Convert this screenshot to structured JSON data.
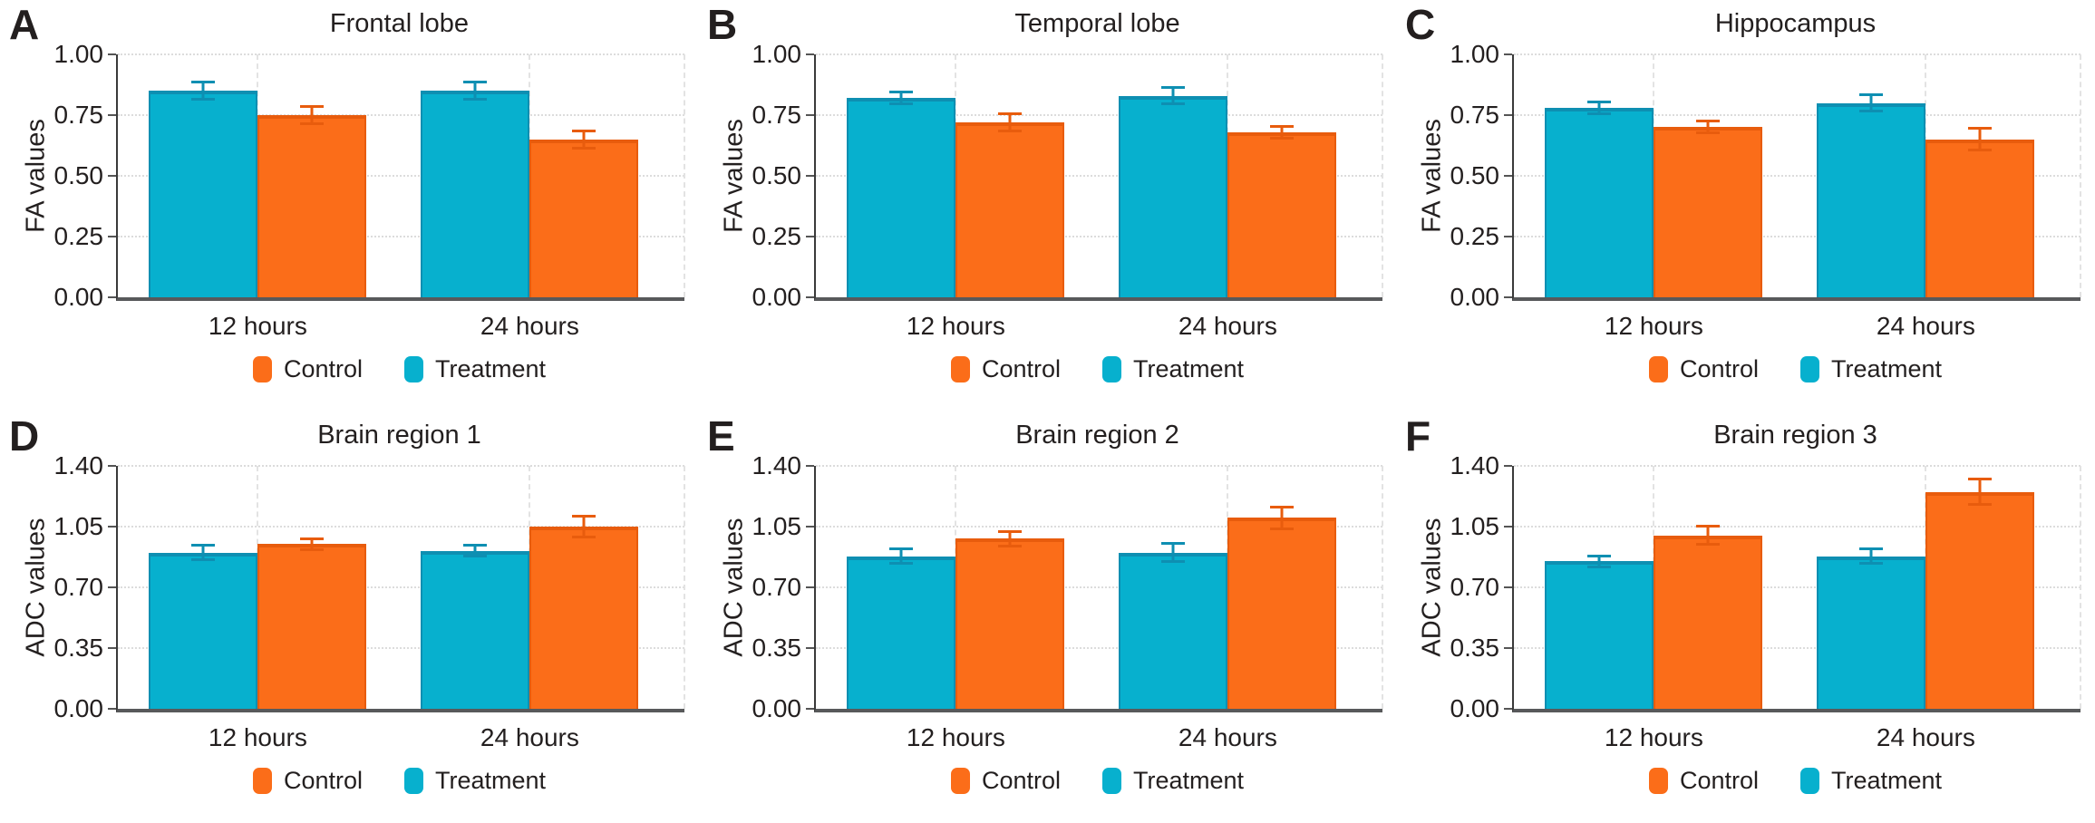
{
  "figure": {
    "background": "#ffffff",
    "text_color": "#231f1f",
    "series_colors": {
      "treatment": "#07B0CE",
      "control": "#FB6D19"
    },
    "series_accent_colors": {
      "treatment": "#0E8FB2",
      "control": "#E85C0D"
    }
  },
  "chart_data": [
    {
      "letter": "A",
      "type": "bar",
      "title": "Frontal lobe",
      "ylabel": "FA values",
      "ylim": [
        0,
        1.0
      ],
      "ytick_labels": [
        "0.00",
        "0.25",
        "0.50",
        "0.75",
        "1.00"
      ],
      "categories": [
        "12 hours",
        "24 hours"
      ],
      "legend_order": [
        "Control",
        "Treatment"
      ],
      "grid": true,
      "series": [
        {
          "name": "Treatment",
          "color": "#07B0CE",
          "accent": "#0E8FB2",
          "values": [
            0.85,
            0.85
          ],
          "errors": [
            0.04,
            0.04
          ]
        },
        {
          "name": "Control",
          "color": "#FB6D19",
          "accent": "#E85C0D",
          "values": [
            0.75,
            0.65
          ],
          "errors": [
            0.04,
            0.04
          ]
        }
      ]
    },
    {
      "letter": "B",
      "type": "bar",
      "title": "Temporal lobe",
      "ylabel": "FA values",
      "ylim": [
        0,
        1.0
      ],
      "ytick_labels": [
        "0.00",
        "0.25",
        "0.50",
        "0.75",
        "1.00"
      ],
      "categories": [
        "12 hours",
        "24 hours"
      ],
      "legend_order": [
        "Control",
        "Treatment"
      ],
      "grid": true,
      "series": [
        {
          "name": "Treatment",
          "color": "#07B0CE",
          "accent": "#0E8FB2",
          "values": [
            0.82,
            0.83
          ],
          "errors": [
            0.03,
            0.04
          ]
        },
        {
          "name": "Control",
          "color": "#FB6D19",
          "accent": "#E85C0D",
          "values": [
            0.72,
            0.68
          ],
          "errors": [
            0.04,
            0.03
          ]
        }
      ]
    },
    {
      "letter": "C",
      "type": "bar",
      "title": "Hippocampus",
      "ylabel": "FA values",
      "ylim": [
        0,
        1.0
      ],
      "ytick_labels": [
        "0.00",
        "0.25",
        "0.50",
        "0.75",
        "1.00"
      ],
      "categories": [
        "12 hours",
        "24 hours"
      ],
      "legend_order": [
        "Control",
        "Treatment"
      ],
      "grid": true,
      "series": [
        {
          "name": "Treatment",
          "color": "#07B0CE",
          "accent": "#0E8FB2",
          "values": [
            0.78,
            0.8
          ],
          "errors": [
            0.03,
            0.04
          ]
        },
        {
          "name": "Control",
          "color": "#FB6D19",
          "accent": "#E85C0D",
          "values": [
            0.7,
            0.65
          ],
          "errors": [
            0.03,
            0.05
          ]
        }
      ]
    },
    {
      "letter": "D",
      "type": "bar",
      "title": "Brain region 1",
      "ylabel": "ADC values",
      "ylim": [
        0,
        1.4
      ],
      "ytick_labels": [
        "0.00",
        "0.35",
        "0.70",
        "1.05",
        "1.40"
      ],
      "categories": [
        "12 hours",
        "24 hours"
      ],
      "legend_order": [
        "Control",
        "Treatment"
      ],
      "grid": true,
      "series": [
        {
          "name": "Treatment",
          "color": "#07B0CE",
          "accent": "#0E8FB2",
          "values": [
            0.9,
            0.91
          ],
          "errors": [
            0.05,
            0.04
          ]
        },
        {
          "name": "Control",
          "color": "#FB6D19",
          "accent": "#E85C0D",
          "values": [
            0.95,
            1.05
          ],
          "errors": [
            0.04,
            0.07
          ]
        }
      ]
    },
    {
      "letter": "E",
      "type": "bar",
      "title": "Brain region 2",
      "ylabel": "ADC values",
      "ylim": [
        0,
        1.4
      ],
      "ytick_labels": [
        "0.00",
        "0.35",
        "0.70",
        "1.05",
        "1.40"
      ],
      "categories": [
        "12 hours",
        "24 hours"
      ],
      "legend_order": [
        "Control",
        "Treatment"
      ],
      "grid": true,
      "series": [
        {
          "name": "Treatment",
          "color": "#07B0CE",
          "accent": "#0E8FB2",
          "values": [
            0.88,
            0.9
          ],
          "errors": [
            0.05,
            0.06
          ]
        },
        {
          "name": "Control",
          "color": "#FB6D19",
          "accent": "#E85C0D",
          "values": [
            0.98,
            1.1
          ],
          "errors": [
            0.05,
            0.07
          ]
        }
      ]
    },
    {
      "letter": "F",
      "type": "bar",
      "title": "Brain region 3",
      "ylabel": "ADC values",
      "ylim": [
        0,
        1.4
      ],
      "ytick_labels": [
        "0.00",
        "0.35",
        "0.70",
        "1.05",
        "1.40"
      ],
      "categories": [
        "12 hours",
        "24 hours"
      ],
      "legend_order": [
        "Control",
        "Treatment"
      ],
      "grid": true,
      "series": [
        {
          "name": "Treatment",
          "color": "#07B0CE",
          "accent": "#0E8FB2",
          "values": [
            0.85,
            0.88
          ],
          "errors": [
            0.04,
            0.05
          ]
        },
        {
          "name": "Control",
          "color": "#FB6D19",
          "accent": "#E85C0D",
          "values": [
            1.0,
            1.25
          ],
          "errors": [
            0.06,
            0.08
          ]
        }
      ]
    }
  ]
}
